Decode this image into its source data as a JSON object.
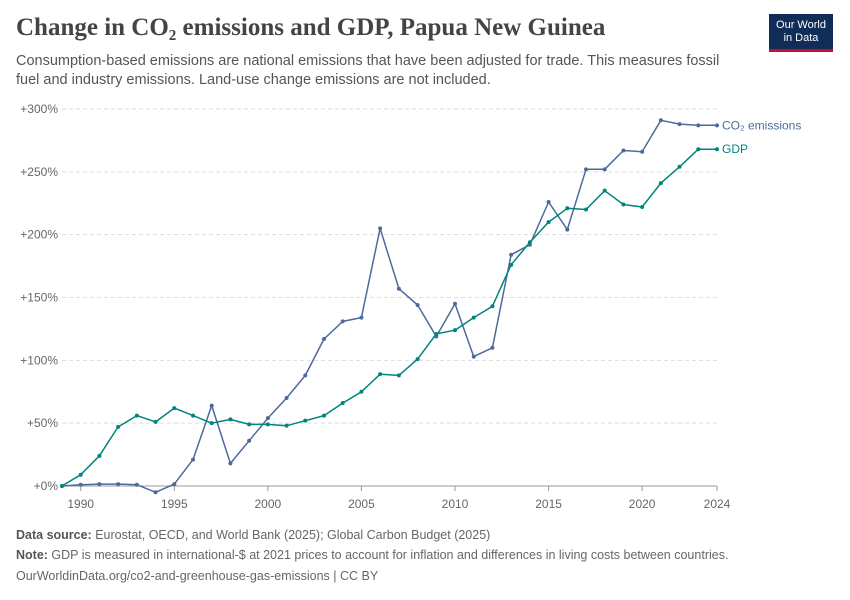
{
  "header": {
    "title": "Change in CO₂ emissions and GDP, Papua New Guinea",
    "subtitle": "Consumption-based emissions are national emissions that have been adjusted for trade. This measures fossil fuel and industry emissions. Land-use change emissions are not included.",
    "logo_line1": "Our World",
    "logo_line2": "in Data"
  },
  "footer": {
    "source_label": "Data source:",
    "source_text": " Eurostat, OECD, and World Bank (2025); Global Carbon Budget (2025)",
    "note_label": "Note:",
    "note_text": " GDP is measured in international-$ at 2021 prices to account for inflation and differences in living costs between countries.",
    "url": "OurWorldinData.org/co2-and-greenhouse-gas-emissions | CC BY"
  },
  "colors": {
    "co2": "#4c6a9c",
    "gdp": "#00847e",
    "grid": "#dddddd",
    "text": "#666666"
  },
  "chart_data": {
    "type": "line",
    "xlim": [
      1989,
      2024
    ],
    "ylim": [
      0,
      300
    ],
    "y_unit": "%",
    "x_ticks": [
      1990,
      1995,
      2000,
      2005,
      2010,
      2015,
      2020,
      2024
    ],
    "y_ticks": [
      0,
      50,
      100,
      150,
      200,
      250,
      300
    ],
    "y_tick_labels": [
      "+0%",
      "+50%",
      "+100%",
      "+150%",
      "+200%",
      "+250%",
      "+300%"
    ],
    "grid": true,
    "legend": "right, at line ends",
    "series": [
      {
        "name": "CO₂ emissions",
        "color": "#4c6a9c",
        "x": [
          1989,
          1990,
          1991,
          1992,
          1993,
          1994,
          1995,
          1996,
          1997,
          1998,
          1999,
          2000,
          2001,
          2002,
          2003,
          2004,
          2005,
          2006,
          2007,
          2008,
          2009,
          2010,
          2011,
          2012,
          2013,
          2014,
          2015,
          2016,
          2017,
          2018,
          2019,
          2020,
          2021,
          2022,
          2023,
          2024
        ],
        "y": [
          0,
          1,
          1.5,
          1.5,
          1,
          -5,
          1.5,
          21,
          64,
          18,
          36,
          54,
          70,
          88,
          117,
          131,
          134,
          205,
          157,
          144,
          119,
          145,
          103,
          110,
          184,
          192,
          226,
          204,
          252,
          252,
          267,
          266,
          291,
          288,
          287,
          287
        ]
      },
      {
        "name": "GDP",
        "color": "#00847e",
        "x": [
          1989,
          1990,
          1991,
          1992,
          1993,
          1994,
          1995,
          1996,
          1997,
          1998,
          1999,
          2000,
          2001,
          2002,
          2003,
          2004,
          2005,
          2006,
          2007,
          2008,
          2009,
          2010,
          2011,
          2012,
          2013,
          2014,
          2015,
          2016,
          2017,
          2018,
          2019,
          2020,
          2021,
          2022,
          2023,
          2024
        ],
        "y": [
          0,
          9,
          24,
          47,
          56,
          51,
          62,
          56,
          50,
          53,
          49,
          49,
          48,
          52,
          56,
          66,
          75,
          89,
          88,
          101,
          121,
          124,
          134,
          143,
          176,
          194,
          210,
          221,
          220,
          235,
          224,
          222,
          241,
          254,
          268,
          268
        ]
      }
    ]
  }
}
